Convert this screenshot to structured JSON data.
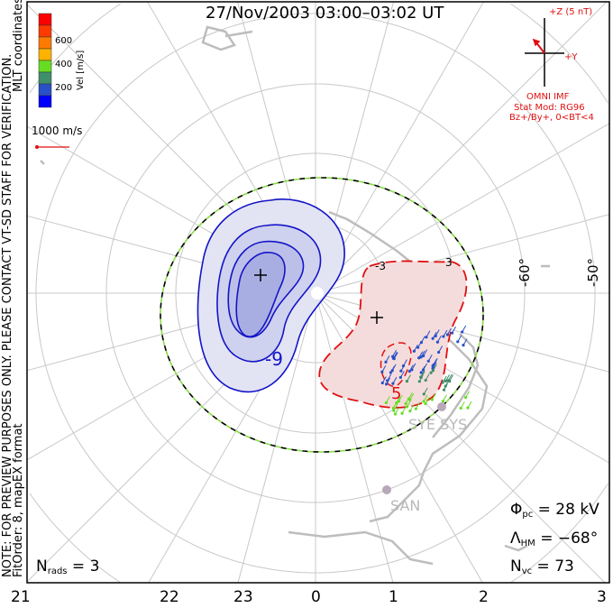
{
  "title": "27/Nov/2003 03:00–03:02 UT",
  "side_notes": {
    "note": "NOTE: FOR PREVIEW PURPOSES ONLY. PLEASE CONTACT VT-SD STAFF FOR VERIFICATION.",
    "fit": "FitOrder: 8, mapEX format",
    "coords": "MLT coordinates"
  },
  "colorbar": {
    "label": "Vel [m/s]",
    "ticks": [
      "600",
      "400",
      "200"
    ],
    "colors": [
      "#ff0000",
      "#ff3a00",
      "#ff7a00",
      "#ffb300",
      "#66dd22",
      "#3f8f6a",
      "#2850c8",
      "#0000ff"
    ]
  },
  "scale_vector": {
    "label": "1000 m/s",
    "color": "#e01010"
  },
  "imf": {
    "z_label": "+Z (5 nT)",
    "y_label": "+Y",
    "source": "OMNI IMF",
    "model": "Stat Mod: RG96",
    "condition": "Bz+/By+, 0<BT<4",
    "color": "#e01010"
  },
  "lat_labels": [
    "-60°",
    "-50°"
  ],
  "contour_labels": [
    "-9",
    "5",
    "-3",
    "3"
  ],
  "stations": [
    "SYE SYS",
    "SAN"
  ],
  "stats": {
    "nrads_sym": "N",
    "nrads_sub": "rads",
    "nrads_val": "= 3",
    "phi_sym": "Φ",
    "phi_sub": "pc",
    "phi_val": "= 28 kV",
    "lambda_sym": "Λ",
    "lambda_sub": "HM",
    "lambda_val": "= −68°",
    "nvc_sym": "N",
    "nvc_sub": "vc",
    "nvc_val": "= 73"
  },
  "mlt_labels": [
    "21",
    "22",
    "23",
    "0",
    "1",
    "2",
    "3"
  ]
}
